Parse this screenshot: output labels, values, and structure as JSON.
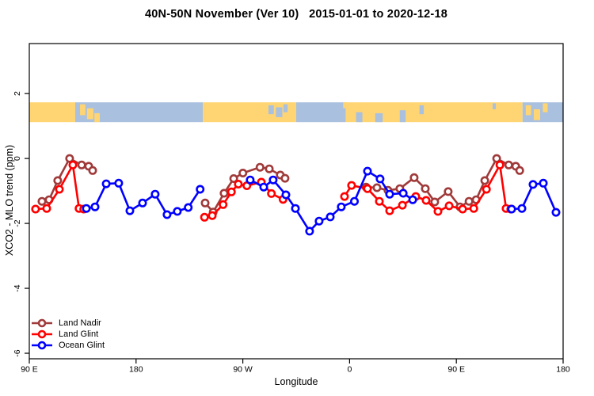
{
  "title": "40N-50N November (Ver 10)   2015-01-01 to 2020-12-18",
  "chart_data": {
    "type": "line",
    "title": "40N-50N November (Ver 10)   2015-01-01 to 2020-12-18",
    "xlabel": "Longitude",
    "ylabel": "XCO2 - MLO trend (ppm)",
    "x_range": [
      90,
      540
    ],
    "y_range": [
      -6.17,
      3.54
    ],
    "x_ticks": [
      {
        "lon": 90,
        "label": "90 E"
      },
      {
        "lon": 180,
        "label": "180"
      },
      {
        "lon": 270,
        "label": "90 W"
      },
      {
        "lon": 360,
        "label": "0"
      },
      {
        "lon": 450,
        "label": "90 E"
      },
      {
        "lon": 540,
        "label": "180"
      }
    ],
    "y_ticks": [
      {
        "v": 2,
        "label": "2"
      },
      {
        "v": 0,
        "label": "0"
      },
      {
        "v": -2,
        "label": "-2"
      },
      {
        "v": -4,
        "label": "-4"
      },
      {
        "v": -6,
        "label": "-6"
      }
    ],
    "grid": false,
    "legend_position": "bottom-left",
    "series": [
      {
        "name": "Land Nadir",
        "color": "#A03A3A",
        "segments": [
          [
            [
              100.7,
              -1.32
            ],
            [
              106.7,
              -1.27
            ],
            [
              114.0,
              -0.68
            ],
            [
              124.0,
              0.0
            ],
            [
              134.1,
              -0.2
            ],
            [
              140.1,
              -0.24
            ],
            [
              143.4,
              -0.37
            ]
          ],
          [
            [
              238.2,
              -1.37
            ],
            [
              245.0,
              -1.65
            ],
            [
              254.2,
              -1.07
            ],
            [
              262.3,
              -0.62
            ],
            [
              270.1,
              -0.45
            ],
            [
              284.5,
              -0.27
            ],
            [
              292.3,
              -0.32
            ],
            [
              301.6,
              -0.51
            ],
            [
              305.6,
              -0.61
            ]
          ],
          [
            [
              373.9,
              -0.88
            ],
            [
              383.1,
              -0.9
            ],
            [
              392.4,
              -0.98
            ],
            [
              402.4,
              -0.93
            ],
            [
              414.4,
              -0.59
            ],
            [
              423.8,
              -0.93
            ],
            [
              431.8,
              -1.34
            ],
            [
              443.1,
              -1.02
            ],
            [
              453.1,
              -1.49
            ],
            [
              460.7,
              -1.32
            ],
            [
              466.7,
              -1.27
            ],
            [
              474.0,
              -0.68
            ],
            [
              484.0,
              0.0
            ],
            [
              494.1,
              -0.2
            ],
            [
              500.1,
              -0.24
            ],
            [
              503.4,
              -0.37
            ]
          ]
        ]
      },
      {
        "name": "Land Glint",
        "color": "#FF0000",
        "segments": [
          [
            [
              95.3,
              -1.56
            ],
            [
              104.7,
              -1.54
            ],
            [
              115.4,
              -0.95
            ],
            [
              126.7,
              -0.2
            ],
            [
              131.9,
              -1.54
            ],
            [
              135.9,
              -1.56
            ]
          ],
          [
            [
              237.7,
              -1.81
            ],
            [
              244.2,
              -1.76
            ],
            [
              253.4,
              -1.42
            ],
            [
              260.4,
              -1.03
            ],
            [
              266.2,
              -0.79
            ],
            [
              273.4,
              -0.84
            ],
            [
              285.6,
              -0.73
            ],
            [
              294.1,
              -1.08
            ],
            [
              303.9,
              -1.26
            ]
          ],
          [
            [
              355.7,
              -1.17
            ],
            [
              361.7,
              -0.83
            ],
            [
              375.1,
              -0.93
            ],
            [
              385.1,
              -1.32
            ],
            [
              393.8,
              -1.61
            ],
            [
              404.5,
              -1.44
            ],
            [
              415.8,
              -1.17
            ],
            [
              424.5,
              -1.29
            ],
            [
              434.5,
              -1.63
            ],
            [
              443.9,
              -1.46
            ],
            [
              455.3,
              -1.56
            ],
            [
              464.7,
              -1.54
            ],
            [
              475.4,
              -0.95
            ],
            [
              486.7,
              -0.2
            ],
            [
              491.9,
              -1.54
            ],
            [
              495.9,
              -1.56
            ]
          ]
        ]
      },
      {
        "name": "Ocean Glint",
        "color": "#0000FF",
        "segments": [
          [
            [
              138.1,
              -1.54
            ],
            [
              145.4,
              -1.49
            ],
            [
              154.8,
              -0.78
            ],
            [
              165.4,
              -0.76
            ],
            [
              174.8,
              -1.61
            ],
            [
              185.5,
              -1.37
            ],
            [
              196.1,
              -1.1
            ],
            [
              206.1,
              -1.73
            ],
            [
              214.8,
              -1.63
            ],
            [
              224.0,
              -1.51
            ],
            [
              234.0,
              -0.95
            ]
          ],
          [
            [
              276.2,
              -0.66
            ],
            [
              287.6,
              -0.88
            ],
            [
              295.6,
              -0.66
            ],
            [
              306.3,
              -1.12
            ],
            [
              314.3,
              -1.54
            ],
            [
              326.3,
              -2.24
            ],
            [
              334.3,
              -1.93
            ],
            [
              343.7,
              -1.8
            ],
            [
              353.0,
              -1.49
            ],
            [
              364.1,
              -1.32
            ],
            [
              375.1,
              -0.39
            ],
            [
              385.7,
              -0.63
            ],
            [
              393.8,
              -1.1
            ],
            [
              405.2,
              -1.07
            ],
            [
              413.2,
              -1.27
            ]
          ],
          [
            [
              496.6,
              -1.56
            ],
            [
              505.3,
              -1.54
            ],
            [
              514.6,
              -0.8
            ],
            [
              523.3,
              -0.76
            ],
            [
              534.0,
              -1.66
            ]
          ]
        ]
      }
    ],
    "map_band": {
      "description": "land/ocean strip for latitude band 40N-50N",
      "land_color": "#FFD573",
      "ocean_color": "#A9C0DF",
      "y_top_value": 1.73,
      "y_bottom_value": 1.12,
      "segments": [
        {
          "type": "land",
          "from": 0.0,
          "to": 0.086
        },
        {
          "type": "ocean",
          "from": 0.086,
          "to": 0.325
        },
        {
          "type": "land",
          "from": 0.325,
          "to": 0.5
        },
        {
          "type": "ocean",
          "from": 0.5,
          "to": 0.593
        },
        {
          "type": "land",
          "from": 0.593,
          "to": 0.924
        },
        {
          "type": "ocean",
          "from": 0.924,
          "to": 1.0
        }
      ],
      "patches": [
        {
          "type": "land",
          "x": 0.095,
          "y": 0.1,
          "w": 0.01,
          "h": 0.55
        },
        {
          "type": "land",
          "x": 0.108,
          "y": 0.3,
          "w": 0.012,
          "h": 0.55
        },
        {
          "type": "land",
          "x": 0.122,
          "y": 0.55,
          "w": 0.01,
          "h": 0.45
        },
        {
          "type": "ocean",
          "x": 0.448,
          "y": 0.15,
          "w": 0.01,
          "h": 0.45
        },
        {
          "type": "ocean",
          "x": 0.462,
          "y": 0.25,
          "w": 0.012,
          "h": 0.5
        },
        {
          "type": "ocean",
          "x": 0.476,
          "y": 0.1,
          "w": 0.008,
          "h": 0.4
        },
        {
          "type": "land",
          "x": 0.588,
          "y": 0.0,
          "w": 0.008,
          "h": 0.3
        },
        {
          "type": "ocean",
          "x": 0.612,
          "y": 0.5,
          "w": 0.012,
          "h": 0.5
        },
        {
          "type": "ocean",
          "x": 0.648,
          "y": 0.55,
          "w": 0.014,
          "h": 0.45
        },
        {
          "type": "ocean",
          "x": 0.694,
          "y": 0.4,
          "w": 0.011,
          "h": 0.6
        },
        {
          "type": "ocean",
          "x": 0.731,
          "y": 0.15,
          "w": 0.008,
          "h": 0.45
        },
        {
          "type": "ocean",
          "x": 0.868,
          "y": 0.05,
          "w": 0.006,
          "h": 0.3
        },
        {
          "type": "land",
          "x": 0.93,
          "y": 0.15,
          "w": 0.01,
          "h": 0.5
        },
        {
          "type": "land",
          "x": 0.945,
          "y": 0.35,
          "w": 0.012,
          "h": 0.55
        },
        {
          "type": "land",
          "x": 0.962,
          "y": 0.05,
          "w": 0.009,
          "h": 0.45
        }
      ]
    }
  }
}
